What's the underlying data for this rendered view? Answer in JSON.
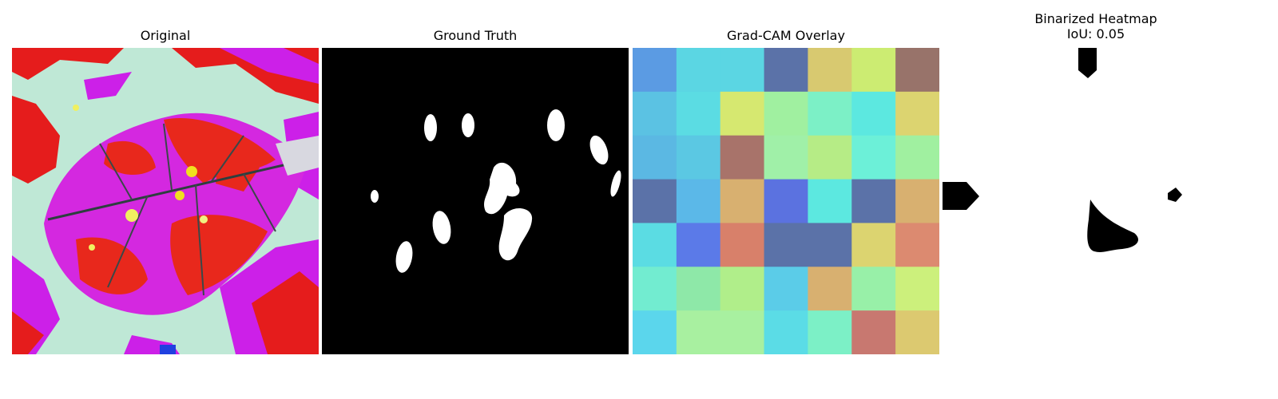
{
  "figure": {
    "panels": [
      {
        "title": "Original"
      },
      {
        "title": "Ground Truth"
      },
      {
        "title": "Grad-CAM Overlay"
      },
      {
        "title_lines": [
          "Binarized Heatmap",
          "IoU: 0.05"
        ]
      }
    ],
    "gradcam_grid": [
      [
        "#5b9be3",
        "#5bd6e3",
        "#5bd6e3",
        "#5b72a8",
        "#d8c970",
        "#ccec72",
        "#98736a"
      ],
      [
        "#5bc2e3",
        "#5bdce3",
        "#d6e870",
        "#a0f0a0",
        "#7cf0c6",
        "#5ce8e0",
        "#dcd470"
      ],
      [
        "#5bb8e3",
        "#5bc8e3",
        "#a8736a",
        "#a0f0a8",
        "#b6ec86",
        "#6cf0d8",
        "#a0f0a0"
      ],
      [
        "#5b72a8",
        "#5bb8e8",
        "#d8b070",
        "#5b72e0",
        "#5ce8e0",
        "#5b72a8",
        "#d8b070"
      ],
      [
        "#5bdce3",
        "#5b7ae8",
        "#d8806a",
        "#5b72a8",
        "#5b72a8",
        "#dcd470",
        "#dc8a70"
      ],
      [
        "#72ecd0",
        "#8ee8a8",
        "#b0ee8a",
        "#5bcce8",
        "#d8b070",
        "#98f0a8",
        "#ccf07c"
      ],
      [
        "#5bd6ec",
        "#a8f0a0",
        "#a8f0a0",
        "#5bdce6",
        "#7cf0c6",
        "#c87870",
        "#dcc970"
      ]
    ]
  }
}
